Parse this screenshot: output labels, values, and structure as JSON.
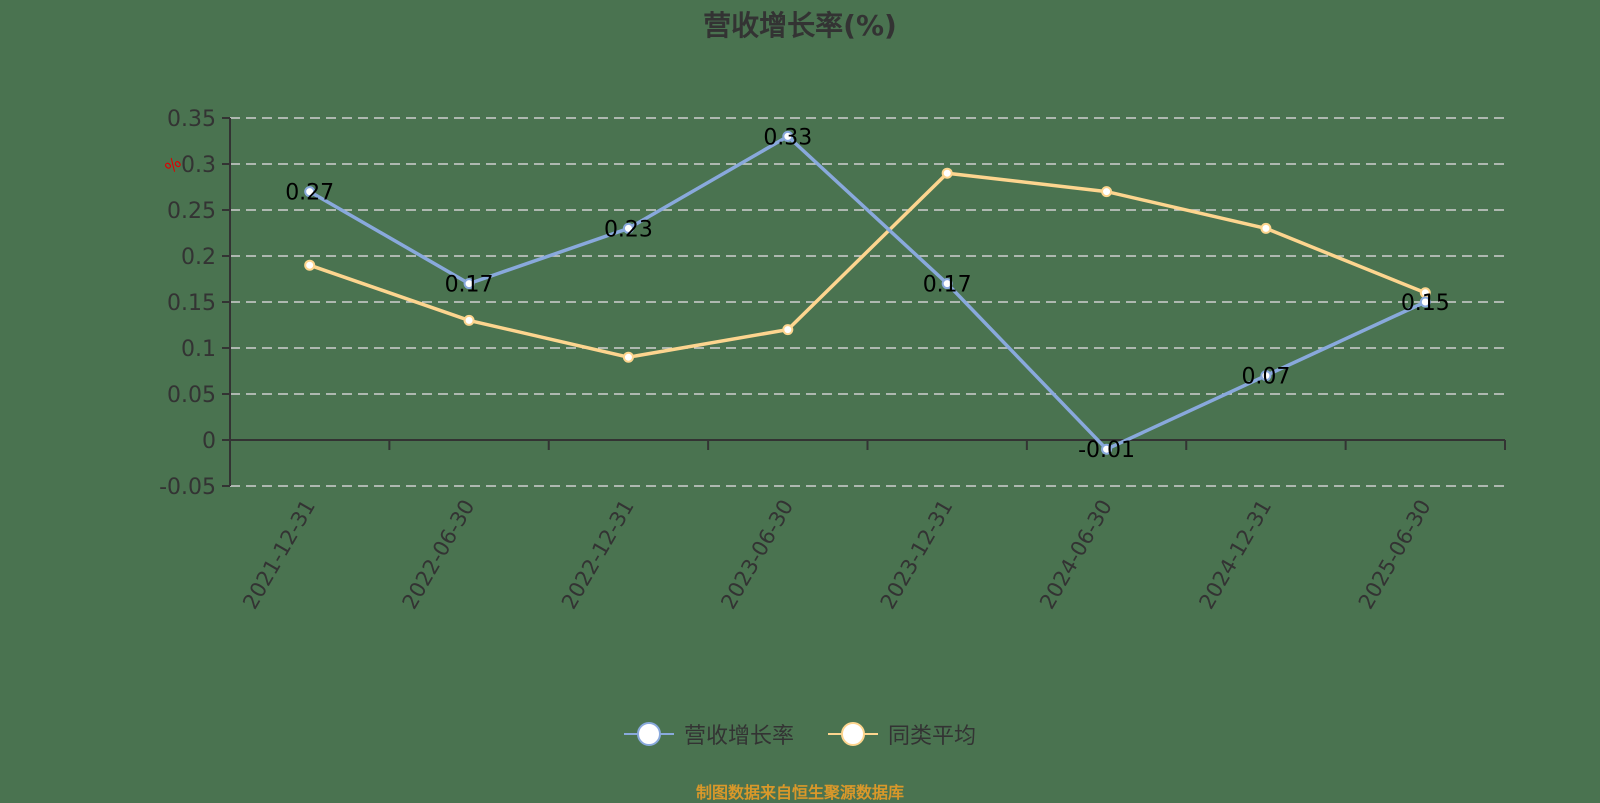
{
  "title": "营收增长率(%)",
  "y_unit_label": "%",
  "legend": [
    {
      "label": "营收增长率",
      "color": "#89a9dc"
    },
    {
      "label": "同类平均",
      "color": "#fdd58f"
    }
  ],
  "source_note": "制图数据来自恒生聚源数据库",
  "colors": {
    "background": "#4a7350",
    "axis": "#333333",
    "grid": "#d0d0d0",
    "series_main": "#89a9dc",
    "series_avg": "#fdd58f",
    "unit_label": "#e00000",
    "source": "#d9982a"
  },
  "chart_data": {
    "type": "line",
    "title": "营收增长率(%)",
    "xlabel": "",
    "ylabel": "%",
    "categories": [
      "2021-12-31",
      "2022-06-30",
      "2022-12-31",
      "2023-06-30",
      "2023-12-31",
      "2024-06-30",
      "2024-12-31",
      "2025-06-30"
    ],
    "series": [
      {
        "name": "营收增长率",
        "values": [
          0.27,
          0.17,
          0.23,
          0.33,
          0.17,
          -0.01,
          0.07,
          0.15
        ],
        "data_labels": true
      },
      {
        "name": "同类平均",
        "values": [
          0.19,
          0.13,
          0.09,
          0.12,
          0.29,
          0.27,
          0.23,
          0.16
        ],
        "data_labels": false
      }
    ],
    "y_ticks": [
      -0.05,
      0,
      0.05,
      0.1,
      0.15,
      0.2,
      0.25,
      0.3,
      0.35
    ],
    "ylim": [
      -0.05,
      0.35
    ],
    "grid": "horizontal dashed",
    "legend_position": "bottom",
    "x_tick_rotation": -60
  }
}
